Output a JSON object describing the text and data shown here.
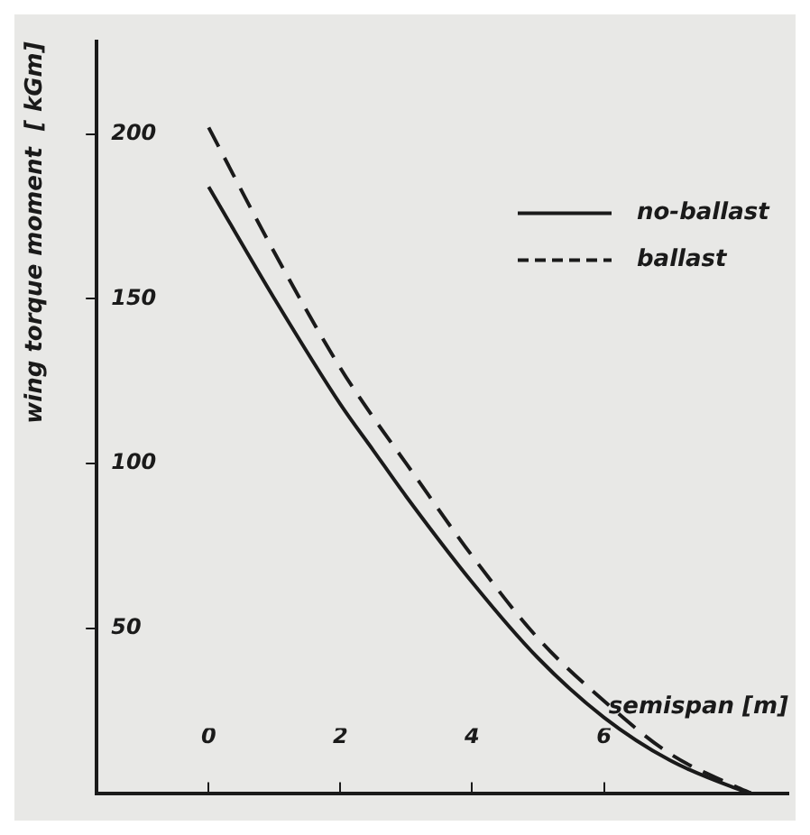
{
  "chart_data": {
    "type": "line",
    "xlabel": "semispan [m]",
    "ylabel": "wing torque moment  [ kGm]",
    "xlim": [
      -1.7,
      8.8
    ],
    "ylim": [
      0,
      228
    ],
    "xticks": [
      0,
      2,
      4,
      6
    ],
    "yticks": [
      50,
      100,
      150,
      200
    ],
    "grid": false,
    "legend": "top right",
    "marker": "none",
    "series": [
      {
        "name": "no-ballast",
        "color": "#1a1a1a",
        "line_style": "solid",
        "x": [
          0,
          1,
          2,
          2.5,
          3,
          4,
          5,
          6,
          7,
          8,
          8.23
        ],
        "values": [
          184,
          150,
          118,
          104,
          90,
          64,
          41,
          23,
          10,
          1.5,
          0
        ]
      },
      {
        "name": "ballast",
        "color": "#1a1a1a",
        "line_style": "dashed",
        "x": [
          0,
          1,
          2,
          2.5,
          3,
          4,
          5,
          6,
          7,
          8,
          8.23
        ],
        "values": [
          202,
          164,
          129,
          114,
          100,
          72,
          47,
          28,
          12,
          2,
          0
        ]
      }
    ]
  }
}
